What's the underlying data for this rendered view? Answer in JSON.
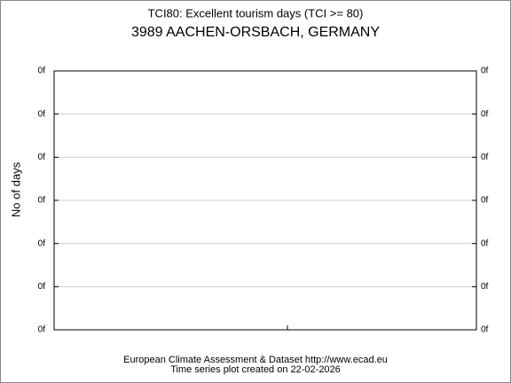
{
  "chart_data": {
    "type": "line",
    "title": "TCI80: Excellent tourism days (TCI >= 80)",
    "subtitle": "3989 AACHEN-ORSBACH, GERMANY",
    "ylabel": "No of days",
    "ytick_labels": [
      "0f",
      "0f",
      "0f",
      "0f",
      "0f",
      "0f",
      "0f"
    ],
    "series": [],
    "grid": true,
    "footer": [
      "European Climate Assessment & Dataset  http://www.ecad.eu",
      "Time series plot created on 22-02-2026"
    ]
  }
}
